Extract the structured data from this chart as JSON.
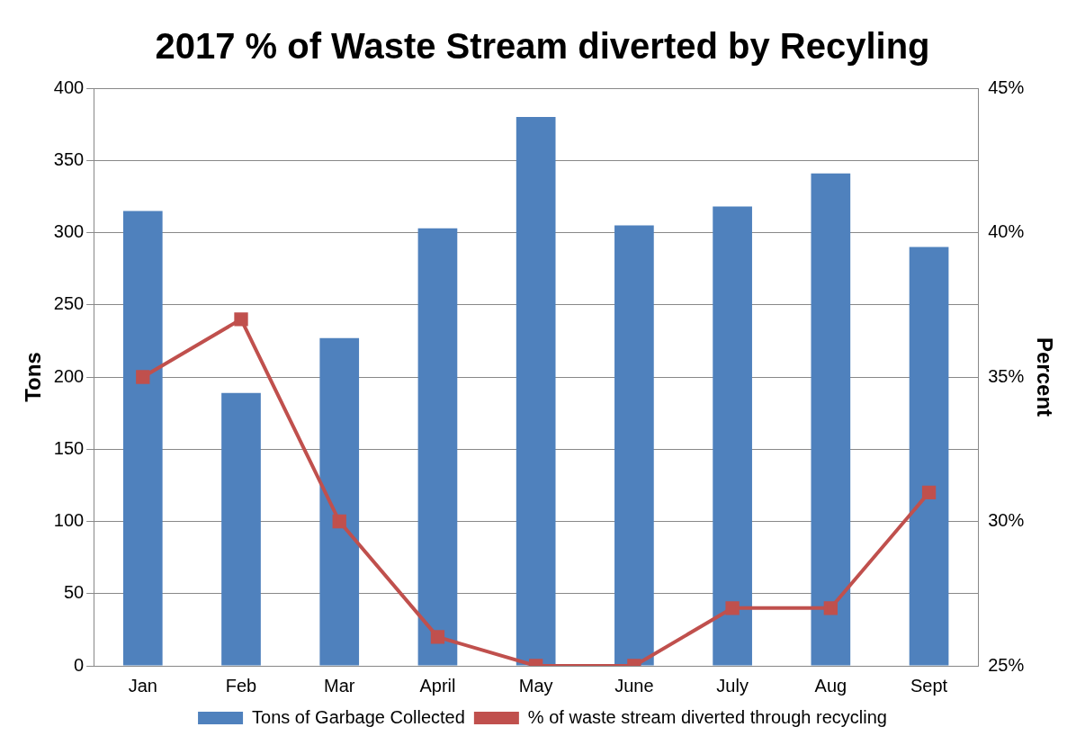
{
  "chart_data": {
    "type": "bar",
    "title": "2017 % of Waste Stream diverted by Recyling",
    "ylabel": "Tons",
    "y2label": "Percent",
    "categories": [
      "Jan",
      "Feb",
      "Mar",
      "April",
      "May",
      "June",
      "July",
      "Aug",
      "Sept"
    ],
    "series": [
      {
        "name": "Tons of Garbage Collected",
        "color": "#4f81bd",
        "values": [
          315,
          189,
          227,
          303,
          380,
          305,
          318,
          341,
          290
        ]
      },
      {
        "name": "% of waste stream diverted through recycling",
        "type": "line",
        "axis": "y2",
        "color": "#c0504d",
        "marker": "square",
        "values": [
          35,
          37,
          30,
          26,
          25,
          25,
          27,
          27,
          31
        ]
      }
    ],
    "ylim": [
      0,
      400
    ],
    "yticks": [
      0,
      50,
      100,
      150,
      200,
      250,
      300,
      350,
      400
    ],
    "y2lim": [
      25,
      45
    ],
    "y2ticks": [
      {
        "value": 25,
        "label": "25%"
      },
      {
        "value": 30,
        "label": "30%"
      },
      {
        "value": 35,
        "label": "35%"
      },
      {
        "value": 40,
        "label": "40%"
      },
      {
        "value": 45,
        "label": "45%"
      }
    ],
    "grid": "y",
    "legend": "bottom"
  }
}
